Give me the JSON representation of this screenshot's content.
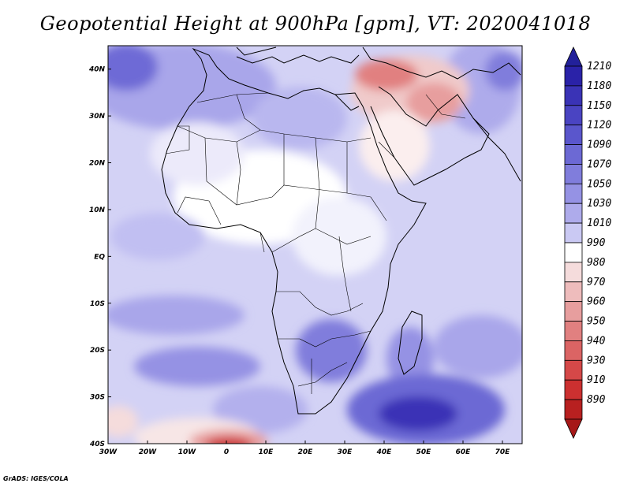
{
  "title": "Geopotential Height at 900hPa [gpm], VT: 2020041018",
  "credit": "GrADS: IGES/COLA",
  "map": {
    "lon_range": [
      -30,
      75
    ],
    "lat_range": [
      -40,
      45
    ],
    "lon_ticks": [
      {
        "value": -30,
        "label": "30W"
      },
      {
        "value": -20,
        "label": "20W"
      },
      {
        "value": -10,
        "label": "10W"
      },
      {
        "value": 0,
        "label": "0"
      },
      {
        "value": 10,
        "label": "10E"
      },
      {
        "value": 20,
        "label": "20E"
      },
      {
        "value": 30,
        "label": "30E"
      },
      {
        "value": 40,
        "label": "40E"
      },
      {
        "value": 50,
        "label": "50E"
      },
      {
        "value": 60,
        "label": "60E"
      },
      {
        "value": 70,
        "label": "70E"
      }
    ],
    "lat_ticks": [
      {
        "value": 40,
        "label": "40N"
      },
      {
        "value": 30,
        "label": "30N"
      },
      {
        "value": 20,
        "label": "20N"
      },
      {
        "value": 10,
        "label": "10N"
      },
      {
        "value": 0,
        "label": "EQ"
      },
      {
        "value": -10,
        "label": "10S"
      },
      {
        "value": -20,
        "label": "20S"
      },
      {
        "value": -30,
        "label": "30S"
      },
      {
        "value": -40,
        "label": "40S"
      }
    ],
    "features": [
      {
        "name": "middle-east-low-region",
        "value": 975,
        "lon": 50,
        "lat": 32
      },
      {
        "name": "south-atlantic-low-region",
        "value": 900,
        "lon": 0,
        "lat": -40
      },
      {
        "name": "southwest-indian-high-region",
        "value": 1180,
        "lon": 52,
        "lat": -34
      },
      {
        "name": "north-atlantic-high-region",
        "value": 1100,
        "lon": -28,
        "lat": 40
      }
    ]
  },
  "colorbar": {
    "levels": [
      {
        "label": "1210",
        "color": "#2a22a8"
      },
      {
        "label": "1180",
        "color": "#3a33b6"
      },
      {
        "label": "1150",
        "color": "#4a44c2"
      },
      {
        "label": "1120",
        "color": "#5a56cc"
      },
      {
        "label": "1090",
        "color": "#6c69d4"
      },
      {
        "label": "1070",
        "color": "#807ddc"
      },
      {
        "label": "1050",
        "color": "#9592e4"
      },
      {
        "label": "1030",
        "color": "#aeabeb"
      },
      {
        "label": "1010",
        "color": "#cac9f3"
      },
      {
        "label": "990",
        "color": "#ffffff"
      },
      {
        "label": "980",
        "color": "#f5dcdc"
      },
      {
        "label": "970",
        "color": "#eebcbc"
      },
      {
        "label": "960",
        "color": "#e79e9e"
      },
      {
        "label": "950",
        "color": "#e18080"
      },
      {
        "label": "940",
        "color": "#db6464"
      },
      {
        "label": "930",
        "color": "#d54848"
      },
      {
        "label": "910",
        "color": "#cc3030"
      },
      {
        "label": "890",
        "color": "#b82020"
      }
    ],
    "top_color": "#22209a",
    "bottom_color": "#a61818"
  }
}
